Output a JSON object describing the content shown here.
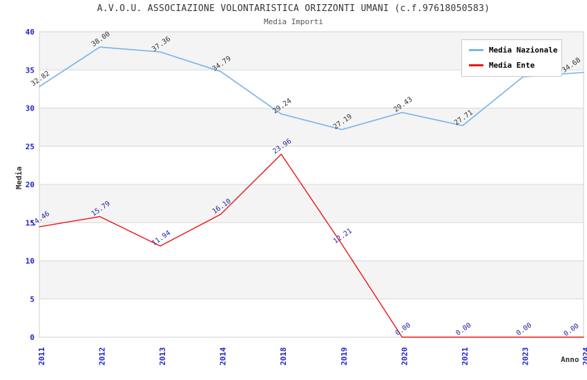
{
  "title": "A.V.O.U. ASSOCIAZIONE VOLONTARISTICA ORIZZONTI UMANI (c.f.97618050583)",
  "subtitle": "Media Importi",
  "chart_data": {
    "type": "line",
    "categories": [
      "2011",
      "2012",
      "2013",
      "2014",
      "2018",
      "2019",
      "2020",
      "2021",
      "2023",
      "2024"
    ],
    "series": [
      {
        "name": "Media Nazionale",
        "color": "#7cb5ec",
        "label_color": "#333333",
        "values": [
          32.82,
          38.0,
          37.36,
          34.79,
          29.24,
          27.19,
          29.43,
          27.71,
          34.1,
          34.68
        ],
        "labels": [
          "32.82",
          "38.00",
          "37.36",
          "34.79",
          "29.24",
          "27.19",
          "29.43",
          "27.71",
          "",
          "34.68"
        ]
      },
      {
        "name": "Media Ente",
        "color": "#ee1111",
        "label_color": "#1f1f9c",
        "values": [
          14.46,
          15.79,
          11.94,
          16.1,
          23.96,
          12.21,
          0.0,
          0.0,
          0.0,
          0.0
        ],
        "labels": [
          "14.46",
          "15.79",
          "11.94",
          "16.10",
          "23.96",
          "12.21",
          "0.00",
          "0.00",
          "0.00",
          "0.00"
        ]
      }
    ],
    "xlabel": "Anno",
    "ylabel": "Media",
    "ylim": [
      0,
      40
    ],
    "ytick_step": 5,
    "yticks": [
      "0",
      "5",
      "10",
      "15",
      "20",
      "25",
      "30",
      "35",
      "40"
    ],
    "grid": true,
    "legend_position": "top-right",
    "colors": {
      "tick_label": "#2222cc",
      "band_fill": "#f4f4f4",
      "gridline": "#d8d8d8",
      "plot_border": "#cfcfcf"
    }
  }
}
